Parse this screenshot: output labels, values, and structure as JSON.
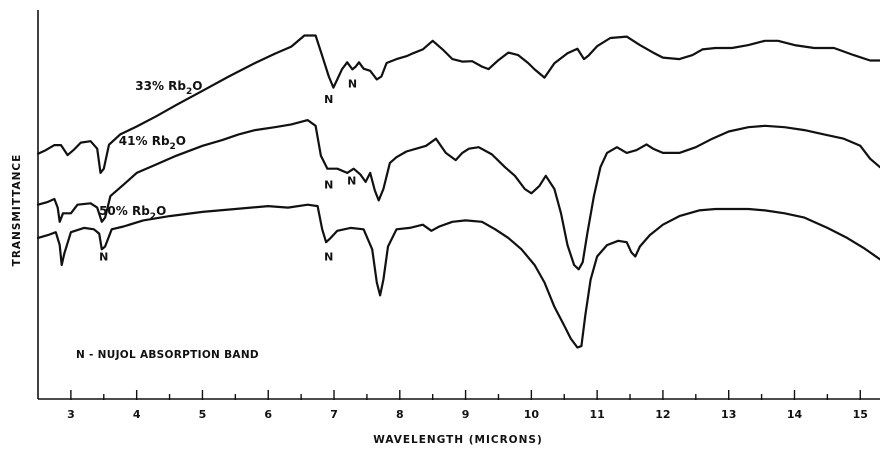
{
  "chart_data": {
    "type": "line",
    "title": "",
    "xlabel": "WAVELENGTH (MICRONS)",
    "ylabel": "TRANSMITTANCE",
    "xlim": [
      2.5,
      15.3
    ],
    "ylim": [
      0,
      100
    ],
    "x_ticks": [
      3,
      4,
      5,
      6,
      7,
      8,
      9,
      10,
      11,
      12,
      13,
      14,
      15
    ],
    "x_tick_labels": [
      "3",
      "4",
      "5",
      "6",
      "7",
      "8",
      "9",
      "10",
      "11",
      "12",
      "13",
      "14",
      "15"
    ],
    "y_tick_labels": [],
    "grid": false,
    "series": [
      {
        "name": "33% Rb",
        "label_subscript": "2",
        "label_suffix": "O",
        "points": [
          [
            2.5,
            62
          ],
          [
            2.6,
            62.8
          ],
          [
            2.75,
            64.4
          ],
          [
            2.85,
            64.4
          ],
          [
            2.95,
            61.6
          ],
          [
            3.05,
            63.2
          ],
          [
            3.15,
            65.1
          ],
          [
            3.3,
            65.5
          ],
          [
            3.4,
            63.4
          ],
          [
            3.45,
            56.6
          ],
          [
            3.5,
            57.8
          ],
          [
            3.58,
            64.5
          ],
          [
            3.75,
            67.4
          ],
          [
            4,
            69.6
          ],
          [
            4.3,
            72.5
          ],
          [
            4.6,
            75.6
          ],
          [
            5,
            79.6
          ],
          [
            5.4,
            83.6
          ],
          [
            5.8,
            87.4
          ],
          [
            6.1,
            90
          ],
          [
            6.35,
            92
          ],
          [
            6.55,
            95.1
          ],
          [
            6.72,
            95.1
          ],
          [
            6.82,
            89.4
          ],
          [
            6.92,
            83.6
          ],
          [
            6.99,
            80.5
          ],
          [
            7.05,
            82.8
          ],
          [
            7.12,
            85.6
          ],
          [
            7.2,
            87.6
          ],
          [
            7.28,
            85.6
          ],
          [
            7.33,
            86.4
          ],
          [
            7.38,
            87.6
          ],
          [
            7.45,
            85.8
          ],
          [
            7.55,
            85.2
          ],
          [
            7.65,
            82.8
          ],
          [
            7.72,
            83.6
          ],
          [
            7.8,
            87.4
          ],
          [
            7.95,
            88.5
          ],
          [
            8.1,
            89.3
          ],
          [
            8.2,
            90.1
          ],
          [
            8.35,
            91.2
          ],
          [
            8.5,
            93.6
          ],
          [
            8.65,
            91.2
          ],
          [
            8.8,
            88.5
          ],
          [
            8.95,
            87.8
          ],
          [
            9.1,
            87.9
          ],
          [
            9.25,
            86.4
          ],
          [
            9.35,
            85.7
          ],
          [
            9.5,
            88.2
          ],
          [
            9.65,
            90.3
          ],
          [
            9.8,
            89.6
          ],
          [
            9.95,
            87.4
          ],
          [
            10.05,
            85.6
          ],
          [
            10.2,
            83.3
          ],
          [
            10.35,
            87.3
          ],
          [
            10.55,
            90.1
          ],
          [
            10.7,
            91.4
          ],
          [
            10.8,
            88.5
          ],
          [
            10.87,
            89.5
          ],
          [
            11,
            92.1
          ],
          [
            11.2,
            94.4
          ],
          [
            11.45,
            94.8
          ],
          [
            11.65,
            92.4
          ],
          [
            11.85,
            90.3
          ],
          [
            12,
            88.9
          ],
          [
            12.25,
            88.5
          ],
          [
            12.45,
            89.6
          ],
          [
            12.6,
            91.2
          ],
          [
            12.8,
            91.6
          ],
          [
            13.05,
            91.6
          ],
          [
            13.3,
            92.4
          ],
          [
            13.55,
            93.6
          ],
          [
            13.75,
            93.6
          ],
          [
            14,
            92.4
          ],
          [
            14.3,
            91.6
          ],
          [
            14.6,
            91.6
          ],
          [
            14.9,
            89.6
          ],
          [
            15.15,
            88.1
          ],
          [
            15.3,
            88.1
          ]
        ]
      },
      {
        "name": "41% Rb",
        "label_subscript": "2",
        "label_suffix": "O",
        "points": [
          [
            2.5,
            47.7
          ],
          [
            2.65,
            48.5
          ],
          [
            2.75,
            49.3
          ],
          [
            2.8,
            46.9
          ],
          [
            2.83,
            42.9
          ],
          [
            2.88,
            45.3
          ],
          [
            3,
            45.3
          ],
          [
            3.1,
            47.7
          ],
          [
            3.3,
            48.1
          ],
          [
            3.4,
            46.9
          ],
          [
            3.47,
            42.9
          ],
          [
            3.52,
            44.1
          ],
          [
            3.6,
            50.1
          ],
          [
            3.8,
            53.3
          ],
          [
            4,
            56.6
          ],
          [
            4.3,
            59
          ],
          [
            4.6,
            61.4
          ],
          [
            5,
            64.2
          ],
          [
            5.3,
            65.8
          ],
          [
            5.55,
            67.4
          ],
          [
            5.8,
            68.6
          ],
          [
            6.1,
            69.4
          ],
          [
            6.35,
            70.2
          ],
          [
            6.6,
            71.4
          ],
          [
            6.72,
            69.8
          ],
          [
            6.8,
            61.4
          ],
          [
            6.9,
            57.8
          ],
          [
            7.05,
            57.8
          ],
          [
            7.2,
            56.6
          ],
          [
            7.3,
            57.8
          ],
          [
            7.4,
            56.2
          ],
          [
            7.48,
            54.1
          ],
          [
            7.55,
            56.6
          ],
          [
            7.62,
            51.7
          ],
          [
            7.68,
            48.9
          ],
          [
            7.75,
            52.1
          ],
          [
            7.85,
            59.4
          ],
          [
            7.95,
            61
          ],
          [
            8.1,
            62.6
          ],
          [
            8.25,
            63.4
          ],
          [
            8.4,
            64.2
          ],
          [
            8.55,
            66.2
          ],
          [
            8.7,
            62.2
          ],
          [
            8.85,
            60.2
          ],
          [
            8.95,
            62.2
          ],
          [
            9.05,
            63.4
          ],
          [
            9.2,
            63.8
          ],
          [
            9.4,
            61.8
          ],
          [
            9.6,
            58.2
          ],
          [
            9.75,
            55.8
          ],
          [
            9.9,
            52.1
          ],
          [
            10,
            50.9
          ],
          [
            10.12,
            52.9
          ],
          [
            10.22,
            55.8
          ],
          [
            10.35,
            52.1
          ],
          [
            10.45,
            45.3
          ],
          [
            10.55,
            36.4
          ],
          [
            10.65,
            30.8
          ],
          [
            10.72,
            29.6
          ],
          [
            10.78,
            31.6
          ],
          [
            10.85,
            39.6
          ],
          [
            10.95,
            50.1
          ],
          [
            11.05,
            58.2
          ],
          [
            11.15,
            62.2
          ],
          [
            11.3,
            63.8
          ],
          [
            11.45,
            62.2
          ],
          [
            11.6,
            63
          ],
          [
            11.75,
            64.6
          ],
          [
            11.85,
            63.4
          ],
          [
            12,
            62.2
          ],
          [
            12.25,
            62.2
          ],
          [
            12.5,
            63.8
          ],
          [
            12.75,
            66.2
          ],
          [
            13,
            68.2
          ],
          [
            13.3,
            69.4
          ],
          [
            13.55,
            69.8
          ],
          [
            13.85,
            69.4
          ],
          [
            14.15,
            68.6
          ],
          [
            14.45,
            67.4
          ],
          [
            14.75,
            66.2
          ],
          [
            15,
            64.2
          ],
          [
            15.15,
            60.6
          ],
          [
            15.3,
            58.2
          ]
        ]
      },
      {
        "name": "50% Rb",
        "label_subscript": "2",
        "label_suffix": "O",
        "points": [
          [
            2.5,
            38.4
          ],
          [
            2.65,
            39.2
          ],
          [
            2.77,
            40
          ],
          [
            2.83,
            36.4
          ],
          [
            2.86,
            30.8
          ],
          [
            2.9,
            34
          ],
          [
            3,
            40
          ],
          [
            3.2,
            41.2
          ],
          [
            3.35,
            40.8
          ],
          [
            3.43,
            39.6
          ],
          [
            3.47,
            35.2
          ],
          [
            3.52,
            36
          ],
          [
            3.62,
            40.8
          ],
          [
            3.8,
            41.6
          ],
          [
            4.1,
            43.3
          ],
          [
            4.5,
            44.5
          ],
          [
            5,
            45.7
          ],
          [
            5.5,
            46.5
          ],
          [
            6,
            47.3
          ],
          [
            6.3,
            46.9
          ],
          [
            6.6,
            47.7
          ],
          [
            6.75,
            47.3
          ],
          [
            6.82,
            40.8
          ],
          [
            6.88,
            37.2
          ],
          [
            6.95,
            38.4
          ],
          [
            7.05,
            40.4
          ],
          [
            7.25,
            41.2
          ],
          [
            7.45,
            40.8
          ],
          [
            7.58,
            35.2
          ],
          [
            7.65,
            25.9
          ],
          [
            7.7,
            22.3
          ],
          [
            7.75,
            26.7
          ],
          [
            7.82,
            36
          ],
          [
            7.95,
            40.8
          ],
          [
            8.15,
            41.2
          ],
          [
            8.35,
            42.1
          ],
          [
            8.48,
            40.4
          ],
          [
            8.6,
            41.6
          ],
          [
            8.8,
            42.9
          ],
          [
            9,
            43.3
          ],
          [
            9.25,
            42.9
          ],
          [
            9.45,
            40.8
          ],
          [
            9.65,
            38.4
          ],
          [
            9.85,
            35.2
          ],
          [
            10.05,
            30.8
          ],
          [
            10.2,
            25.9
          ],
          [
            10.35,
            19.1
          ],
          [
            10.5,
            13.8
          ],
          [
            10.6,
            10.2
          ],
          [
            10.7,
            7.7
          ],
          [
            10.76,
            8.1
          ],
          [
            10.82,
            16.7
          ],
          [
            10.9,
            26.7
          ],
          [
            11,
            33.2
          ],
          [
            11.15,
            36.4
          ],
          [
            11.32,
            37.6
          ],
          [
            11.45,
            37.2
          ],
          [
            11.52,
            34.4
          ],
          [
            11.58,
            33.2
          ],
          [
            11.65,
            36
          ],
          [
            11.8,
            39.2
          ],
          [
            12,
            42.1
          ],
          [
            12.25,
            44.5
          ],
          [
            12.55,
            46.1
          ],
          [
            12.8,
            46.5
          ],
          [
            13.05,
            46.5
          ],
          [
            13.3,
            46.5
          ],
          [
            13.55,
            46.1
          ],
          [
            13.85,
            45.3
          ],
          [
            14.15,
            44.1
          ],
          [
            14.5,
            41.2
          ],
          [
            14.8,
            38.4
          ],
          [
            15.05,
            35.6
          ],
          [
            15.3,
            32.4
          ]
        ]
      }
    ],
    "series_label_anchors": [
      [
        5.0,
        79.6
      ],
      [
        4.75,
        64.2
      ],
      [
        4.45,
        44.5
      ]
    ],
    "annotations": [
      {
        "text": "N",
        "x": 3.5,
        "y": 33.2
      },
      {
        "text": "N",
        "x": 6.92,
        "y": 33.2
      },
      {
        "text": "N",
        "x": 6.92,
        "y": 53.3
      },
      {
        "text": "N",
        "x": 7.27,
        "y": 54.5
      },
      {
        "text": "N",
        "x": 6.92,
        "y": 77.3
      },
      {
        "text": "N",
        "x": 7.28,
        "y": 81.7
      }
    ],
    "note": "N - NUJOL ABSORPTION BAND"
  }
}
